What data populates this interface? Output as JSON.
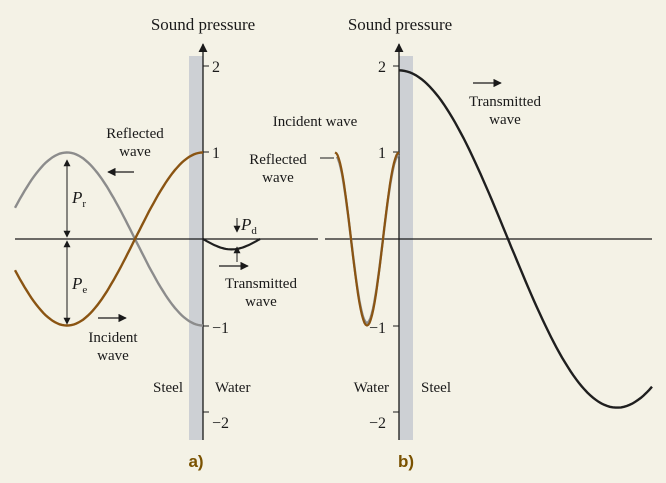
{
  "colors": {
    "background": "#f4f2e6",
    "incident": "#8a5412",
    "reflected": "#8c8c8c",
    "transmitted": "#1f1f1f",
    "wall": "#cdd0d4"
  },
  "panel_a": {
    "axis_title": "Sound pressure",
    "ticks": {
      "p2": "2",
      "p1": "1",
      "m1": "−1",
      "m2": "−2"
    },
    "reflected_label": [
      "Reflected",
      "wave"
    ],
    "incident_label": [
      "Incident",
      "wave"
    ],
    "transmitted_label": [
      "Transmitted",
      "wave"
    ],
    "pr_symbol": "P",
    "pr_sub": "r",
    "pe_symbol": "P",
    "pe_sub": "e",
    "pd_symbol": "P",
    "pd_sub": "d",
    "left_medium": "Steel",
    "right_medium": "Water",
    "panel_label": "a)"
  },
  "panel_b": {
    "axis_title": "Sound pressure",
    "ticks": {
      "p2": "2",
      "p1": "1",
      "m1": "−1",
      "m2": "−2"
    },
    "incident_label": "Incident wave",
    "reflected_label": [
      "Reflected",
      "wave"
    ],
    "transmitted_label": [
      "Transmitted",
      "wave"
    ],
    "left_medium": "Water",
    "right_medium": "Steel",
    "panel_label": "b)"
  }
}
